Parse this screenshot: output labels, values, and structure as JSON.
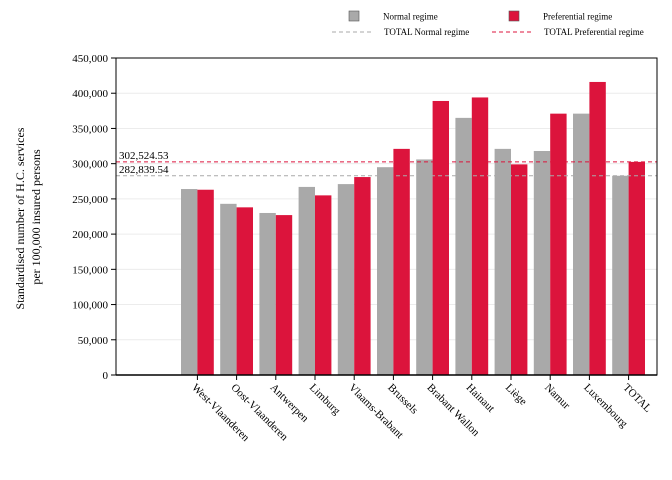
{
  "chart_data": {
    "type": "bar",
    "ylabel_lines": [
      "Standardised number of H.C. services",
      "per 100,000 insured persons"
    ],
    "categories": [
      "West-Vlaanderen",
      "Oost-Vlaanderen",
      "Antwerpen",
      "Limburg",
      "Vlaams-Brabant",
      "Brussels",
      "Brabant Wallon",
      "Hainaut",
      "Liège",
      "Namur",
      "Luxembourg",
      "TOTAL"
    ],
    "series": [
      {
        "name": "Normal regime",
        "color": "#a9a9a9",
        "values": [
          264000,
          243000,
          230000,
          267000,
          271000,
          295000,
          306000,
          365000,
          321000,
          318000,
          371000,
          282839.54
        ]
      },
      {
        "name": "Preferential regime",
        "color": "#dc143c",
        "values": [
          263000,
          238000,
          227000,
          255000,
          281000,
          321000,
          389000,
          394000,
          299000,
          371000,
          416000,
          302524.53
        ]
      }
    ],
    "reference_lines": [
      {
        "name": "TOTAL Normal regime",
        "value": 282839.54,
        "label": "282,839.54",
        "color": "#a9a9a9"
      },
      {
        "name": "TOTAL Preferential regime",
        "value": 302524.53,
        "label": "302,524.53",
        "color": "#dc143c"
      }
    ],
    "ylim": [
      0,
      450000
    ],
    "yticks": [
      "0",
      "50,000",
      "100,000",
      "150,000",
      "200,000",
      "250,000",
      "300,000",
      "350,000",
      "400,000",
      "450,000"
    ],
    "ytick_values": [
      0,
      50000,
      100000,
      150000,
      200000,
      250000,
      300000,
      350000,
      400000,
      450000
    ],
    "grid": true,
    "legend_position": "top-right"
  }
}
